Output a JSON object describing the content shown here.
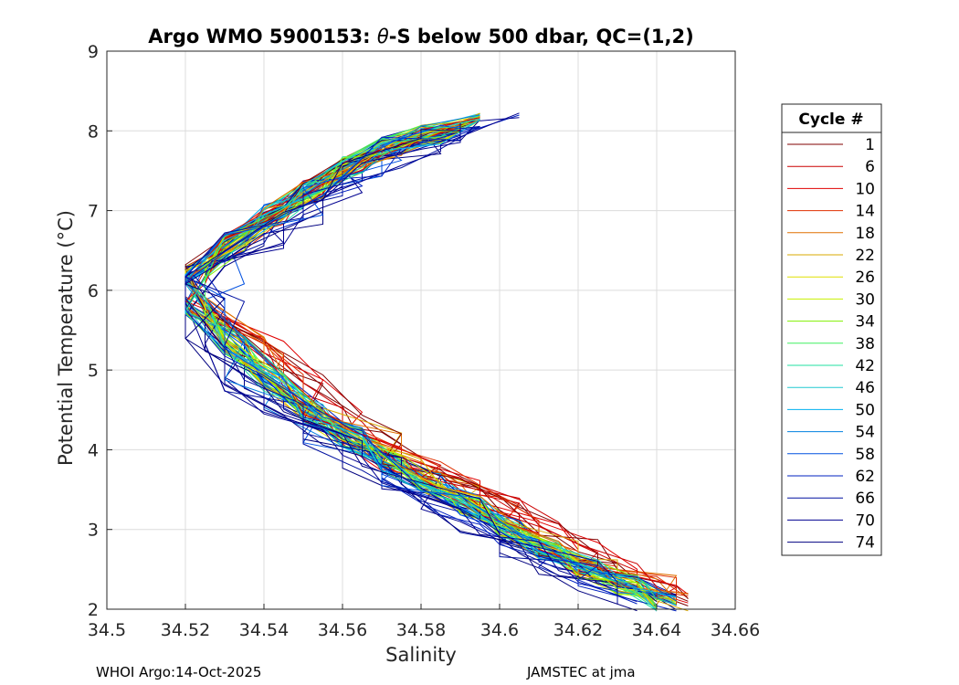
{
  "chart_data": {
    "type": "line",
    "title_prefix": "Argo WMO 5900153: ",
    "title_theta": "θ",
    "title_suffix": "-S below 500 dbar,  QC=(1,2)",
    "xlabel": "Salinity",
    "ylabel": "Potential Temperature (°C)",
    "xlim": [
      34.5,
      34.66
    ],
    "ylim": [
      2,
      9
    ],
    "xticks": [
      "34.5",
      "34.52",
      "34.54",
      "34.56",
      "34.58",
      "34.6",
      "34.62",
      "34.64",
      "34.66"
    ],
    "yticks": [
      "2",
      "3",
      "4",
      "5",
      "6",
      "7",
      "8",
      "9"
    ],
    "grid": true,
    "legend_title": "Cycle #",
    "legend_position": "outside-right",
    "series": [
      {
        "name": "1",
        "color": "#800000"
      },
      {
        "name": "6",
        "color": "#cc0000"
      },
      {
        "name": "10",
        "color": "#e00000"
      },
      {
        "name": "14",
        "color": "#e03000"
      },
      {
        "name": "18",
        "color": "#e07000"
      },
      {
        "name": "22",
        "color": "#d9a800"
      },
      {
        "name": "26",
        "color": "#e0e000"
      },
      {
        "name": "30",
        "color": "#c8f000"
      },
      {
        "name": "34",
        "color": "#80f000"
      },
      {
        "name": "38",
        "color": "#40f060"
      },
      {
        "name": "42",
        "color": "#20e0a0"
      },
      {
        "name": "46",
        "color": "#20c8d0"
      },
      {
        "name": "50",
        "color": "#00b0f0"
      },
      {
        "name": "54",
        "color": "#0080e0"
      },
      {
        "name": "58",
        "color": "#0050e0"
      },
      {
        "name": "62",
        "color": "#0020c0"
      },
      {
        "name": "66",
        "color": "#0010a0"
      },
      {
        "name": "70",
        "color": "#000090"
      },
      {
        "name": "74",
        "color": "#000080"
      }
    ],
    "base_profile": {
      "s": [
        34.59,
        34.58,
        34.57,
        34.56,
        34.55,
        34.54,
        34.53,
        34.52,
        34.52,
        34.53,
        34.54,
        34.55,
        34.56,
        34.57,
        34.58,
        34.59,
        34.6,
        34.61,
        34.62,
        34.63,
        34.64
      ],
      "t": [
        8.1,
        7.95,
        7.8,
        7.55,
        7.25,
        6.95,
        6.6,
        6.2,
        5.8,
        5.3,
        4.85,
        4.45,
        4.15,
        3.85,
        3.6,
        3.3,
        3.0,
        2.75,
        2.5,
        2.3,
        2.1
      ]
    }
  },
  "footer": {
    "left": "WHOI Argo:14-Oct-2025",
    "right": "JAMSTEC at jma"
  }
}
